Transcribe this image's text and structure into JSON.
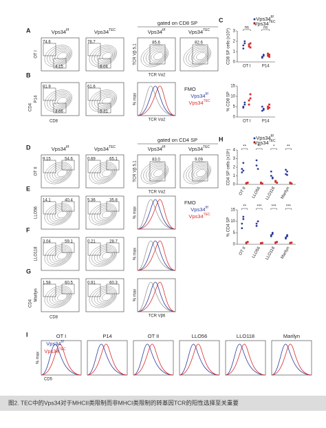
{
  "genotypes": [
    {
      "base": "Vps34",
      "sup": "f/f"
    },
    {
      "base": "Vps34",
      "sup": "TEC"
    }
  ],
  "gates": [
    "gated on CD8 SP",
    "gated on CD4 SP"
  ],
  "fmo": "FMO",
  "axes": {
    "cd4": "CD4",
    "cd8": "CD8",
    "max": "% max",
    "va2": "TCR Vα2",
    "vb51": "TCR Vβ 5.1",
    "vb6": "TCR Vβ6",
    "cd5": "CD5"
  },
  "rows": [
    {
      "letter": "A",
      "label": "OT I",
      "nums": [
        [
          "74.6",
          "4.15"
        ],
        [
          "78.7",
          "6.04"
        ]
      ],
      "gated": [
        "85.6",
        "82.6"
      ]
    },
    {
      "letter": "B",
      "label": "P14",
      "nums": [
        [
          "81.9",
          "3.66"
        ],
        [
          "61.6",
          "5.31"
        ]
      ]
    },
    {
      "letter": "D",
      "label": "OT II",
      "nums": [
        [
          "9.15",
          "54.6"
        ],
        [
          "0.69",
          "65.1"
        ]
      ],
      "gated": [
        "83.0",
        "9.09"
      ]
    },
    {
      "letter": "E",
      "label": "LLO56",
      "nums": [
        [
          "14.1",
          "40.4"
        ],
        [
          "5.36",
          "35.8"
        ]
      ]
    },
    {
      "letter": "F",
      "label": "LLO118",
      "nums": [
        [
          "3.04",
          "59.1"
        ],
        [
          "0.21",
          "28.7"
        ]
      ]
    },
    {
      "letter": "G",
      "label": "Marilyn",
      "nums": [
        [
          "1.58",
          "60.5"
        ],
        [
          "0.91",
          "60.3"
        ]
      ]
    }
  ],
  "dotplots": [
    {
      "letter": "C",
      "ylabel": "CD8 SP cells (x10⁶)",
      "ylim": [
        0,
        3
      ],
      "yticks": [
        0,
        1,
        2,
        3
      ],
      "categories": [
        "OT I",
        "P14"
      ],
      "sig": [
        "ns",
        "ns"
      ],
      "ff": [
        [
          1.6,
          2.0,
          1.3,
          1.8
        ],
        [
          0.5,
          0.7,
          0.4,
          0.6
        ]
      ],
      "tec": [
        [
          1.5,
          1.8,
          1.7,
          1.4
        ],
        [
          0.6,
          0.5,
          0.8,
          0.7
        ]
      ]
    },
    {
      "ylabel": "% CD8 SP",
      "ylim": [
        0,
        15
      ],
      "yticks": [
        0,
        5,
        10,
        15
      ],
      "categories": [
        "OT I",
        "P14"
      ],
      "sig": [],
      "ff": [
        [
          5,
          6,
          4.5,
          7
        ],
        [
          3,
          4,
          5,
          3.5
        ]
      ],
      "tec": [
        [
          8,
          11,
          6,
          9
        ],
        [
          4,
          6,
          5,
          4.5
        ]
      ]
    },
    {
      "letter": "H",
      "ylabel": "CD4 SP cells (x10⁶)",
      "ylim": [
        0,
        4
      ],
      "yticks": [
        0,
        1,
        2,
        3,
        4
      ],
      "categories": [
        "OT II",
        "LLO56",
        "LLO118",
        "Marilyn"
      ],
      "sig": [
        "**",
        "**",
        "*",
        "**"
      ],
      "ff": [
        [
          1.8,
          2.5,
          1.4,
          1.6
        ],
        [
          2.8,
          1.8,
          2.2
        ],
        [
          1,
          0.7,
          1.5,
          0.8
        ],
        [
          1.2,
          1.5,
          1.7,
          1.1
        ]
      ],
      "tec": [
        [
          0.1,
          0.2,
          0.15
        ],
        [
          0.2,
          0.1,
          0.15
        ],
        [
          0.3,
          0.2,
          0.4
        ],
        [
          0.2,
          0.1,
          0.15
        ]
      ]
    },
    {
      "ylabel": "% CD4 SP",
      "ylim": [
        0,
        15
      ],
      "yticks": [
        0,
        5,
        10,
        15
      ],
      "categories": [
        "OT II",
        "LLO56",
        "LLO118",
        "Marilyn"
      ],
      "sig": [
        "**",
        "***",
        "***",
        "***"
      ],
      "ff": [
        [
          9,
          11,
          7,
          12
        ],
        [
          8,
          10,
          9
        ],
        [
          4,
          5,
          3.5,
          4.5
        ],
        [
          3,
          4,
          2.5,
          3.5
        ]
      ],
      "tec": [
        [
          0.5,
          1,
          0.7
        ],
        [
          0.4,
          0.6,
          0.5
        ],
        [
          0.8,
          1,
          0.6
        ],
        [
          0.5,
          0.7,
          0.6
        ]
      ]
    }
  ],
  "panel_i": {
    "letter": "I",
    "titles": [
      "OT I",
      "P14",
      "OT II",
      "LLO56",
      "LLO118",
      "Marilyn"
    ]
  },
  "caption": "图2. TEC中的Vps34对于MHCII类限制而非MHCI类限制的转基因TCR的阳性选择至关重要"
}
